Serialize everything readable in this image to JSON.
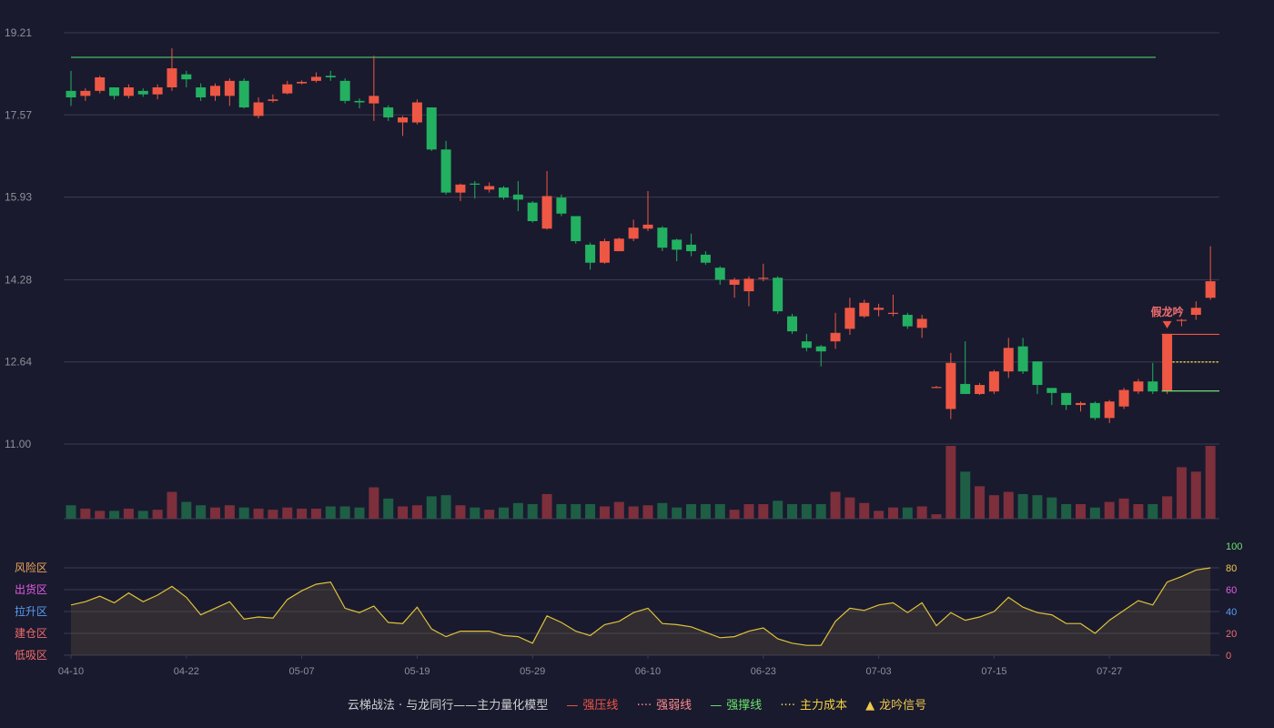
{
  "chart_data": {
    "type": "candlestick",
    "price_axis": {
      "ticks": [
        "19.21",
        "17.57",
        "15.93",
        "14.28",
        "12.64",
        "11.00"
      ],
      "ylim": [
        11.0,
        19.21
      ]
    },
    "indicator_axis": {
      "ticks": [
        "100",
        "80",
        "60",
        "40",
        "20",
        "0"
      ],
      "zones": [
        "风险区",
        "出货区",
        "拉升区",
        "建仓区",
        "低吸区"
      ],
      "ylim": [
        0,
        100
      ]
    },
    "x_ticks": [
      "04-10",
      "04-22",
      "05-07",
      "05-19",
      "05-29",
      "06-10",
      "06-23",
      "07-03",
      "07-15",
      "07-27"
    ],
    "candles": [
      [
        18.05,
        17.92,
        18.45,
        17.75
      ],
      [
        17.95,
        18.05,
        18.1,
        17.85
      ],
      [
        18.05,
        18.32,
        18.35,
        18.0
      ],
      [
        18.12,
        17.95,
        18.12,
        17.88
      ],
      [
        17.95,
        18.12,
        18.18,
        17.9
      ],
      [
        18.05,
        17.98,
        18.1,
        17.93
      ],
      [
        17.98,
        18.12,
        18.18,
        17.88
      ],
      [
        18.12,
        18.5,
        18.9,
        18.05
      ],
      [
        18.38,
        18.28,
        18.45,
        18.12
      ],
      [
        18.12,
        17.92,
        18.2,
        17.85
      ],
      [
        17.95,
        18.15,
        18.2,
        17.85
      ],
      [
        17.95,
        18.25,
        18.3,
        17.75
      ],
      [
        18.25,
        17.72,
        18.3,
        17.7
      ],
      [
        17.55,
        17.82,
        17.92,
        17.5
      ],
      [
        17.85,
        17.88,
        17.98,
        17.82
      ],
      [
        18.0,
        18.18,
        18.25,
        17.98
      ],
      [
        18.2,
        18.23,
        18.26,
        18.18
      ],
      [
        18.25,
        18.33,
        18.42,
        18.22
      ],
      [
        18.35,
        18.32,
        18.45,
        18.25
      ],
      [
        18.25,
        17.85,
        18.3,
        17.8
      ],
      [
        17.85,
        17.82,
        17.9,
        17.7
      ],
      [
        17.8,
        17.95,
        18.75,
        17.45
      ],
      [
        17.72,
        17.52,
        17.76,
        17.45
      ],
      [
        17.42,
        17.52,
        17.55,
        17.15
      ],
      [
        17.42,
        17.82,
        17.88,
        17.38
      ],
      [
        17.72,
        16.88,
        17.72,
        16.85
      ],
      [
        16.88,
        16.02,
        17.05,
        15.98
      ],
      [
        16.02,
        16.18,
        16.2,
        15.85
      ],
      [
        16.2,
        16.18,
        16.25,
        15.9
      ],
      [
        16.08,
        16.15,
        16.22,
        16.02
      ],
      [
        16.12,
        15.92,
        16.15,
        15.88
      ],
      [
        15.98,
        15.88,
        16.25,
        15.65
      ],
      [
        15.82,
        15.45,
        15.85,
        15.42
      ],
      [
        15.3,
        15.95,
        16.45,
        15.28
      ],
      [
        15.92,
        15.6,
        15.98,
        15.55
      ],
      [
        15.55,
        15.05,
        15.55,
        15.0
      ],
      [
        14.98,
        14.62,
        15.02,
        14.48
      ],
      [
        14.62,
        15.05,
        15.1,
        14.6
      ],
      [
        14.85,
        15.1,
        15.12,
        14.85
      ],
      [
        15.1,
        15.32,
        15.48,
        15.05
      ],
      [
        15.3,
        15.38,
        16.05,
        15.25
      ],
      [
        15.32,
        14.92,
        15.35,
        14.85
      ],
      [
        15.08,
        14.88,
        15.1,
        14.65
      ],
      [
        14.98,
        14.85,
        15.2,
        14.75
      ],
      [
        14.78,
        14.62,
        14.85,
        14.58
      ],
      [
        14.52,
        14.28,
        14.55,
        14.18
      ],
      [
        14.18,
        14.28,
        14.32,
        13.92
      ],
      [
        14.05,
        14.3,
        14.35,
        13.75
      ],
      [
        14.3,
        14.32,
        14.6,
        14.25
      ],
      [
        14.32,
        13.65,
        14.35,
        13.6
      ],
      [
        13.55,
        13.25,
        13.6,
        13.2
      ],
      [
        13.05,
        12.92,
        13.2,
        12.85
      ],
      [
        12.95,
        12.85,
        12.98,
        12.55
      ],
      [
        13.05,
        13.22,
        13.62,
        12.9
      ],
      [
        13.3,
        13.72,
        13.92,
        13.18
      ],
      [
        13.55,
        13.82,
        13.88,
        13.52
      ],
      [
        13.68,
        13.72,
        13.8,
        13.55
      ],
      [
        13.6,
        13.62,
        13.98,
        13.55
      ],
      [
        13.58,
        13.35,
        13.62,
        13.3
      ],
      [
        13.32,
        13.5,
        13.58,
        13.12
      ],
      [
        12.12,
        12.14,
        12.16,
        12.12
      ],
      [
        11.7,
        12.62,
        12.82,
        11.5
      ],
      [
        12.2,
        12.0,
        13.05,
        12.0
      ],
      [
        12.0,
        12.18,
        12.22,
        11.98
      ],
      [
        12.05,
        12.45,
        12.48,
        12.0
      ],
      [
        12.45,
        12.92,
        13.12,
        12.32
      ],
      [
        12.95,
        12.45,
        13.12,
        12.4
      ],
      [
        12.65,
        12.18,
        12.65,
        12.0
      ],
      [
        12.12,
        12.02,
        12.12,
        11.78
      ],
      [
        12.02,
        11.78,
        12.02,
        11.68
      ],
      [
        11.78,
        11.82,
        11.85,
        11.65
      ],
      [
        11.82,
        11.52,
        11.85,
        11.48
      ],
      [
        11.52,
        11.85,
        11.88,
        11.42
      ],
      [
        11.75,
        12.08,
        12.12,
        11.7
      ],
      [
        12.05,
        12.25,
        12.3,
        12.0
      ],
      [
        12.25,
        12.05,
        12.62,
        12.0
      ],
      [
        12.05,
        13.2,
        13.2,
        12.0
      ],
      [
        13.48,
        13.48,
        13.5,
        13.35
      ],
      [
        13.58,
        13.72,
        13.85,
        13.48
      ],
      [
        13.92,
        14.25,
        14.95,
        13.88
      ]
    ],
    "volumes": [
      12,
      9,
      7,
      7,
      9,
      7,
      8,
      24,
      15,
      12,
      10,
      12,
      10,
      9,
      8,
      10,
      9,
      9,
      11,
      11,
      10,
      28,
      18,
      11,
      12,
      20,
      21,
      12,
      10,
      8,
      10,
      14,
      13,
      22,
      13,
      13,
      13,
      11,
      15,
      11,
      12,
      14,
      10,
      13,
      13,
      13,
      8,
      13,
      13,
      16,
      13,
      13,
      13,
      24,
      19,
      14,
      7,
      10,
      10,
      11,
      4,
      65,
      42,
      29,
      21,
      24,
      22,
      21,
      19,
      13,
      13,
      10,
      15,
      18,
      13,
      13,
      20,
      46,
      42,
      65
    ],
    "indicator_line": [
      46,
      49,
      54,
      48,
      57,
      49,
      55,
      63,
      53,
      37,
      43,
      49,
      33,
      35,
      34,
      51,
      59,
      65,
      67,
      43,
      39,
      45,
      30,
      29,
      44,
      24,
      17,
      22,
      22,
      22,
      18,
      17,
      11,
      36,
      30,
      22,
      18,
      28,
      31,
      39,
      43,
      29,
      28,
      26,
      21,
      16,
      17,
      22,
      25,
      15,
      11,
      9,
      9,
      31,
      43,
      41,
      46,
      48,
      39,
      48,
      27,
      39,
      32,
      35,
      40,
      53,
      44,
      39,
      37,
      29,
      29,
      20,
      32,
      41,
      50,
      46,
      67,
      72,
      78,
      80
    ],
    "annotations": {
      "signal_label": "假龙吟",
      "strong_pressure_level": 13.19,
      "strong_support_level": 12.06,
      "main_cost_level": 12.64,
      "top_resistance_level": 18.72
    },
    "legend": {
      "title": "云梯战法 · 与龙同行——主力量化模型",
      "items": [
        {
          "label": "强压线",
          "symbol": "—",
          "color": "#f05545"
        },
        {
          "label": "强弱线",
          "symbol": "····",
          "color": "#ff8a8a"
        },
        {
          "label": "强撑线",
          "symbol": "—",
          "color": "#6ce26c"
        },
        {
          "label": "主力成本",
          "symbol": "····",
          "color": "#f3d23e"
        },
        {
          "label": "龙吟信号",
          "symbol": "▲",
          "color": "#f0c84b"
        }
      ]
    },
    "colors": {
      "up": "#ee5744",
      "down": "#23b061",
      "vol_up": "#7d2f3c",
      "vol_down": "#1e5e45",
      "indicator_line": "#e0c23a",
      "grid": "#3a3c52",
      "axis_text": "#8e9099",
      "zone_orange": "#f0a55a",
      "zone_magenta": "#e35be3",
      "zone_blue": "#5b9df0",
      "zone_red": "#f26b6b",
      "top_line": "#3fa05a"
    }
  }
}
